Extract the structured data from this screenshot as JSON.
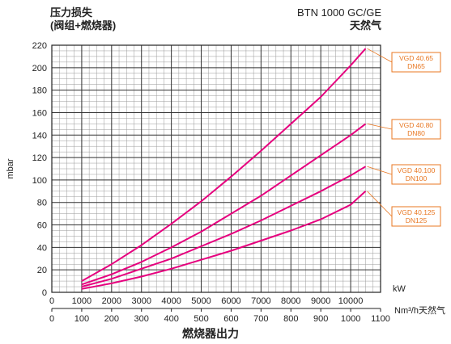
{
  "header": {
    "title": "压力损失",
    "subtitle": "(阀组+燃烧器)",
    "product": "BTN 1000 GC/GE",
    "fuel": "天然气"
  },
  "chart_data": {
    "type": "line",
    "title": "压力损失",
    "subtitle": "(阀组+燃烧器)",
    "ylabel": "mbar",
    "xlabel": "燃烧器出力",
    "x_unit_top": "kW",
    "x_unit_bottom": "Nm³/h天然气",
    "ylim": [
      0,
      220
    ],
    "yticks": [
      0,
      20,
      40,
      60,
      80,
      100,
      120,
      140,
      160,
      180,
      200,
      220
    ],
    "xlim_kw": [
      0,
      11000
    ],
    "xticks_kw": [
      0,
      1000,
      2000,
      3000,
      4000,
      5000,
      6000,
      7000,
      8000,
      9000,
      10000
    ],
    "xticks_nm3h": [
      0,
      100,
      200,
      300,
      400,
      500,
      600,
      700,
      800,
      900,
      1000,
      1100
    ],
    "grid": true,
    "series": [
      {
        "name": "VGD 40.65\nDN65",
        "label_line1": "VGD 40.65",
        "label_line2": "DN65",
        "color": "#e6007e",
        "x": [
          1000,
          2000,
          3000,
          4000,
          5000,
          6000,
          7000,
          8000,
          9000,
          10000,
          10500
        ],
        "y": [
          10,
          25,
          42,
          61,
          81,
          103,
          126,
          150,
          174,
          202,
          217
        ]
      },
      {
        "name": "VGD 40.80\nDN80",
        "label_line1": "VGD 40.80",
        "label_line2": "DN80",
        "color": "#e6007e",
        "x": [
          1000,
          2000,
          3000,
          4000,
          5000,
          6000,
          7000,
          8000,
          9000,
          10000,
          10500
        ],
        "y": [
          7,
          16,
          27,
          40,
          54,
          70,
          86,
          104,
          122,
          140,
          150
        ]
      },
      {
        "name": "VGD 40.100\nDN100",
        "label_line1": "VGD 40.100",
        "label_line2": "DN100",
        "color": "#e6007e",
        "x": [
          1000,
          2000,
          3000,
          4000,
          5000,
          6000,
          7000,
          8000,
          9000,
          10000,
          10500
        ],
        "y": [
          5,
          12,
          21,
          30,
          41,
          52,
          64,
          77,
          90,
          104,
          112
        ]
      },
      {
        "name": "VGD 40.125\nDN125",
        "label_line1": "VGD 40.125",
        "label_line2": "DN125",
        "color": "#e6007e",
        "x": [
          1000,
          2000,
          3000,
          4000,
          5000,
          6000,
          7000,
          8000,
          9000,
          10000,
          10500
        ],
        "y": [
          3,
          8,
          14,
          21,
          29,
          37,
          46,
          55,
          65,
          78,
          90
        ]
      }
    ],
    "label_box_color": "#e87722"
  }
}
